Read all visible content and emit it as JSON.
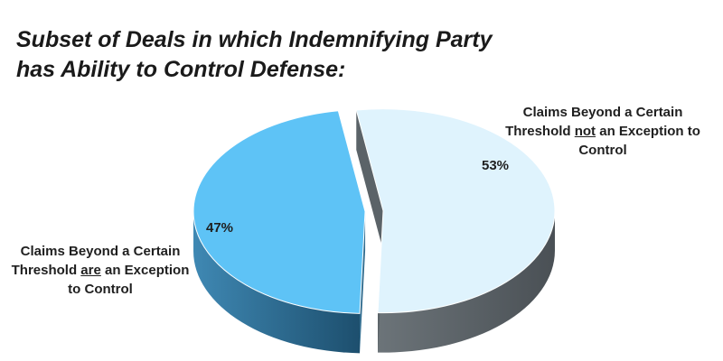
{
  "title": {
    "line1": "Subset of Deals in which Indemnifying Party",
    "line2": "has Ability to Control Defense:"
  },
  "chart_data": {
    "type": "pie",
    "slices": [
      {
        "value": 53,
        "value_label": "53%",
        "label_pre": "Claims Beyond a Certain Threshold ",
        "label_em": "not",
        "label_post": " an Exception to Control",
        "color": "#dff3fd",
        "side_color": "#5b6368"
      },
      {
        "value": 47,
        "value_label": "47%",
        "label_pre": "Claims Beyond a Certain Threshold ",
        "label_em": "are",
        "label_post": " an Exception to Control",
        "color": "#5ec3f6",
        "side_color": "#2f6b8e"
      }
    ],
    "style": "3d-exploded"
  }
}
